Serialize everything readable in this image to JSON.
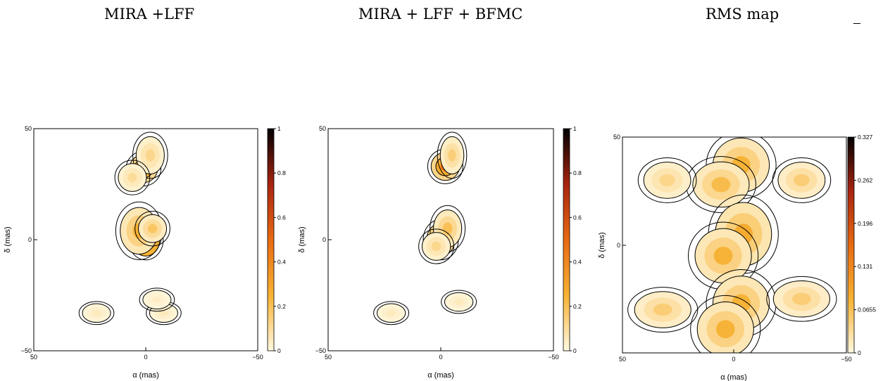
{
  "figure": {
    "headings": [
      "MIRA +LFF",
      "MIRA + LFF + BFMC",
      "RMS map"
    ]
  },
  "chart_data": [
    {
      "type": "heatmap",
      "title": "MIRA +LFF",
      "xlabel": "α (mas)",
      "ylabel": "δ (mas)",
      "xlim": [
        50,
        -50
      ],
      "ylim": [
        -50,
        50
      ],
      "x_ticks": [
        "50",
        "0",
        "−50"
      ],
      "y_ticks": [
        "50",
        "0",
        "−50"
      ],
      "colorbar": {
        "range": [
          0,
          1
        ],
        "ticks": [
          "1",
          "0.8",
          "0.6",
          "0.4",
          "0.2",
          "0"
        ],
        "colormap": [
          "#fff8e0",
          "#f7b233",
          "#e86a12",
          "#a82410",
          "#000000"
        ]
      },
      "sources": [
        {
          "x": 0,
          "y": 0,
          "peak": 1.0,
          "sx": 3,
          "sy": 3.5
        },
        {
          "x": 3,
          "y": 4,
          "peak": 0.25,
          "sx": 4,
          "sy": 5
        },
        {
          "x": -3,
          "y": 5,
          "peak": 0.18,
          "sx": 3,
          "sy": 3
        },
        {
          "x": 1,
          "y": 32,
          "peak": 0.45,
          "sx": 3,
          "sy": 3
        },
        {
          "x": -2,
          "y": 38,
          "peak": 0.12,
          "sx": 3,
          "sy": 4
        },
        {
          "x": 6,
          "y": 28,
          "peak": 0.1,
          "sx": 3,
          "sy": 3
        },
        {
          "x": 22,
          "y": -33,
          "peak": 0.05,
          "sx": 3,
          "sy": 2
        },
        {
          "x": -8,
          "y": -33,
          "peak": 0.05,
          "sx": 3,
          "sy": 2
        },
        {
          "x": -5,
          "y": -27,
          "peak": 0.04,
          "sx": 3,
          "sy": 2
        }
      ]
    },
    {
      "type": "heatmap",
      "title": "MIRA + LFF + BFMC",
      "xlabel": "α (mas)",
      "ylabel": "δ (mas)",
      "xlim": [
        50,
        -50
      ],
      "ylim": [
        -50,
        50
      ],
      "x_ticks": [
        "50",
        "0",
        "−50"
      ],
      "y_ticks": [
        "50",
        "0",
        "−50"
      ],
      "colorbar": {
        "range": [
          0,
          1
        ],
        "ticks": [
          "1",
          "0.8",
          "0.6",
          "0.4",
          "0.2",
          "0"
        ],
        "colormap": [
          "#fff8e0",
          "#f7b233",
          "#e86a12",
          "#a82410",
          "#000000"
        ]
      },
      "sources": [
        {
          "x": 0,
          "y": 0,
          "peak": 0.55,
          "sx": 3,
          "sy": 3.5
        },
        {
          "x": -3,
          "y": 5,
          "peak": 0.2,
          "sx": 3,
          "sy": 4
        },
        {
          "x": 2,
          "y": -3,
          "peak": 0.12,
          "sx": 3,
          "sy": 3
        },
        {
          "x": -2,
          "y": 33,
          "peak": 0.5,
          "sx": 3,
          "sy": 3
        },
        {
          "x": -5,
          "y": 38,
          "peak": 0.15,
          "sx": 2.5,
          "sy": 4
        },
        {
          "x": -8,
          "y": -28,
          "peak": 0.05,
          "sx": 3,
          "sy": 2
        },
        {
          "x": 22,
          "y": -33,
          "peak": 0.05,
          "sx": 3,
          "sy": 2
        }
      ]
    },
    {
      "type": "heatmap",
      "title": "RMS map",
      "xlabel": "α (mas)",
      "ylabel": "δ (mas)",
      "xlim": [
        50,
        -50
      ],
      "ylim": [
        -50,
        50
      ],
      "x_ticks": [
        "50",
        "0",
        "−50"
      ],
      "y_ticks": [
        "50",
        "0"
      ],
      "colorbar": {
        "range": [
          0,
          0.327
        ],
        "ticks": [
          "0.327",
          "0.262",
          "0.196",
          "0.131",
          "0.0655",
          "0"
        ],
        "colormap": [
          "#fff8e0",
          "#f7b233",
          "#e86a12",
          "#a82410",
          "#000000"
        ]
      },
      "sources": [
        {
          "x": 0,
          "y": 33,
          "peak": 0.2,
          "sx": 3,
          "sy": 3
        },
        {
          "x": -3,
          "y": 37,
          "peak": 0.08,
          "sx": 6,
          "sy": 6
        },
        {
          "x": 6,
          "y": 28,
          "peak": 0.07,
          "sx": 6,
          "sy": 5
        },
        {
          "x": 0,
          "y": 0,
          "peak": 0.22,
          "sx": 3,
          "sy": 3
        },
        {
          "x": -4,
          "y": 5,
          "peak": 0.09,
          "sx": 6,
          "sy": 7
        },
        {
          "x": 5,
          "y": -5,
          "peak": 0.08,
          "sx": 6,
          "sy": 6
        },
        {
          "x": 0,
          "y": -33,
          "peak": 0.21,
          "sx": 3,
          "sy": 3
        },
        {
          "x": -3,
          "y": -27,
          "peak": 0.08,
          "sx": 6,
          "sy": 6
        },
        {
          "x": 4,
          "y": -39,
          "peak": 0.08,
          "sx": 6,
          "sy": 6
        },
        {
          "x": -30,
          "y": 30,
          "peak": 0.05,
          "sx": 5,
          "sy": 4
        },
        {
          "x": 30,
          "y": 30,
          "peak": 0.04,
          "sx": 5,
          "sy": 4
        },
        {
          "x": -30,
          "y": -25,
          "peak": 0.05,
          "sx": 6,
          "sy": 4
        },
        {
          "x": 32,
          "y": -30,
          "peak": 0.05,
          "sx": 6,
          "sy": 4
        }
      ]
    }
  ]
}
